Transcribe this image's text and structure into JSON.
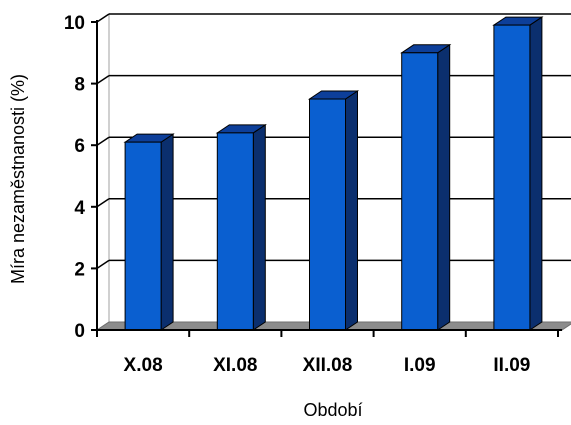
{
  "chart_data": {
    "type": "bar",
    "categories": [
      "X.08",
      "XI.08",
      "XII.08",
      "I.09",
      "II.09"
    ],
    "values": [
      6.1,
      6.4,
      7.5,
      9.0,
      9.9
    ],
    "title": "",
    "xlabel": "Období",
    "ylabel": "Míra nezaměstnanosti (%)",
    "ylim": [
      0,
      10
    ],
    "yticks": [
      "0",
      "2",
      "4",
      "6",
      "8",
      "10"
    ],
    "grid": true,
    "style": "3d-column",
    "colors": {
      "bar_front": "#0a5fd0",
      "bar_side": "#0b2f6e",
      "bar_top": "#0d3f9a",
      "floor": "#8c8c8c",
      "wall": "#ffffff",
      "gridline": "#000000"
    }
  }
}
